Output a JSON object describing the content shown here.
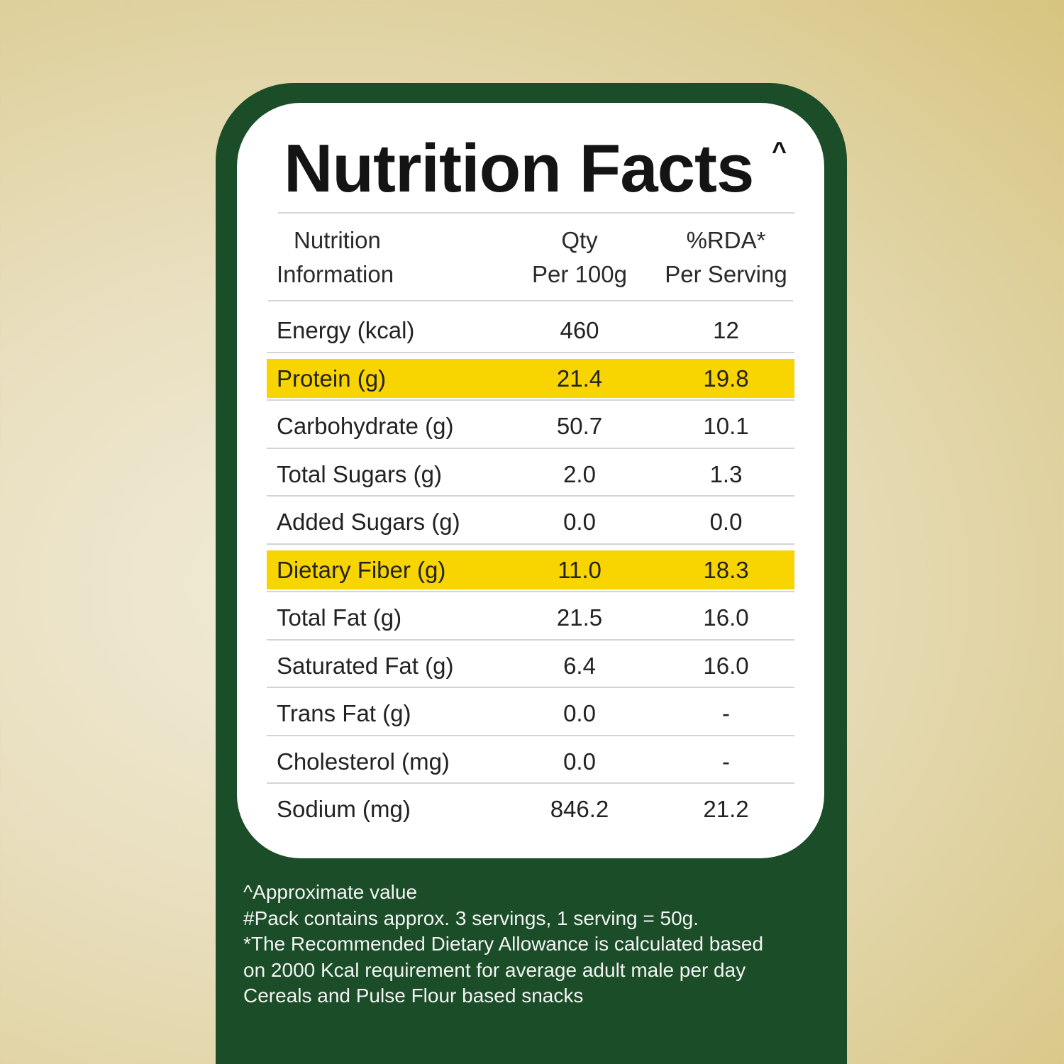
{
  "title": "Nutrition Facts",
  "title_mark": "^",
  "header": {
    "col1": [
      "Nutrition",
      "Information"
    ],
    "col2": [
      "Qty",
      "Per 100g"
    ],
    "col3": [
      "%RDA*",
      "Per Serving"
    ]
  },
  "rows": [
    {
      "name": "Energy (kcal)",
      "qty": "460",
      "rda": "12",
      "highlight": false
    },
    {
      "name": "Protein (g)",
      "qty": "21.4",
      "rda": "19.8",
      "highlight": true
    },
    {
      "name": "Carbohydrate (g)",
      "qty": "50.7",
      "rda": "10.1",
      "highlight": false
    },
    {
      "name": "Total Sugars (g)",
      "qty": "2.0",
      "rda": "1.3",
      "highlight": false
    },
    {
      "name": "Added Sugars (g)",
      "qty": "0.0",
      "rda": "0.0",
      "highlight": false
    },
    {
      "name": "Dietary Fiber (g)",
      "qty": "11.0",
      "rda": "18.3",
      "highlight": true
    },
    {
      "name": "Total Fat (g)",
      "qty": "21.5",
      "rda": "16.0",
      "highlight": false
    },
    {
      "name": "Saturated Fat (g)",
      "qty": "6.4",
      "rda": "16.0",
      "highlight": false
    },
    {
      "name": "Trans Fat (g)",
      "qty": "0.0",
      "rda": "-",
      "highlight": false
    },
    {
      "name": "Cholesterol (mg)",
      "qty": "0.0",
      "rda": "-",
      "highlight": false
    },
    {
      "name": "Sodium (mg)",
      "qty": "846.2",
      "rda": "21.2",
      "highlight": false
    }
  ],
  "notes": [
    "^Approximate value",
    "#Pack contains approx. 3 servings, 1 serving = 50g.",
    "*The Recommended Dietary Allowance is calculated based",
    "on 2000 Kcal requirement for average adult male per day",
    "Cereals and Pulse Flour based snacks"
  ],
  "colors": {
    "panel_green": "#1a4d28",
    "highlight_yellow": "#f8d400",
    "card_white": "#ffffff"
  }
}
